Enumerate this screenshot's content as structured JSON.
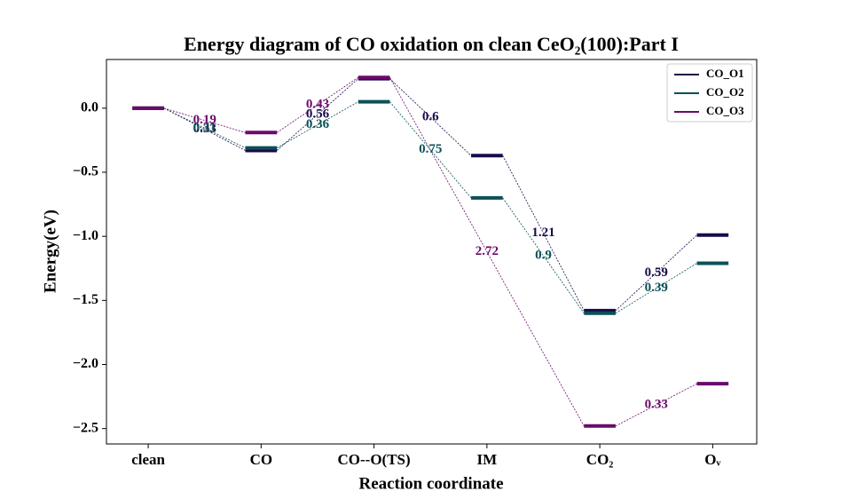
{
  "chart_data": {
    "type": "energy-diagram",
    "title": "Energy diagram of CO oxidation on clean CeO₂(100):Part I",
    "xlabel": "Reaction coordinate",
    "ylabel": "Energy(eV)",
    "categories": [
      "clean",
      "CO",
      "CO--O(TS)",
      "IM",
      "CO₂",
      "Oᵥ"
    ],
    "xlim": [
      -0.37,
      5.39
    ],
    "ylim": [
      -2.62,
      0.38
    ],
    "yticks": [
      {
        "value": 0,
        "label": "0.0"
      },
      {
        "value": -0.5,
        "label": "−0.5"
      },
      {
        "value": -1,
        "label": "−1.0"
      },
      {
        "value": -1.5,
        "label": "−1.5"
      },
      {
        "value": -2,
        "label": "−2.0"
      },
      {
        "value": -2.5,
        "label": "−2.5"
      }
    ],
    "legend": "upper right",
    "series": [
      {
        "name": "CO_O1",
        "color": "#1a0a4a",
        "values": [
          0,
          -0.33,
          0.23,
          -0.37,
          -1.58,
          -0.99
        ],
        "barriers": [
          0.33,
          0.56,
          0.6,
          1.21,
          0.59
        ]
      },
      {
        "name": "CO_O2",
        "color": "#0b5157",
        "values": [
          0,
          -0.31,
          0.05,
          -0.7,
          -1.6,
          -1.21
        ],
        "barriers": [
          0.31,
          0.36,
          0.75,
          0.9,
          0.39
        ]
      },
      {
        "name": "CO_O3",
        "color": "#6b0a6b",
        "values": [
          0,
          -0.19,
          0.24,
          null,
          -2.48,
          -2.15
        ],
        "barriers": [
          0.19,
          0.43,
          2.72,
          0.33
        ]
      }
    ]
  }
}
